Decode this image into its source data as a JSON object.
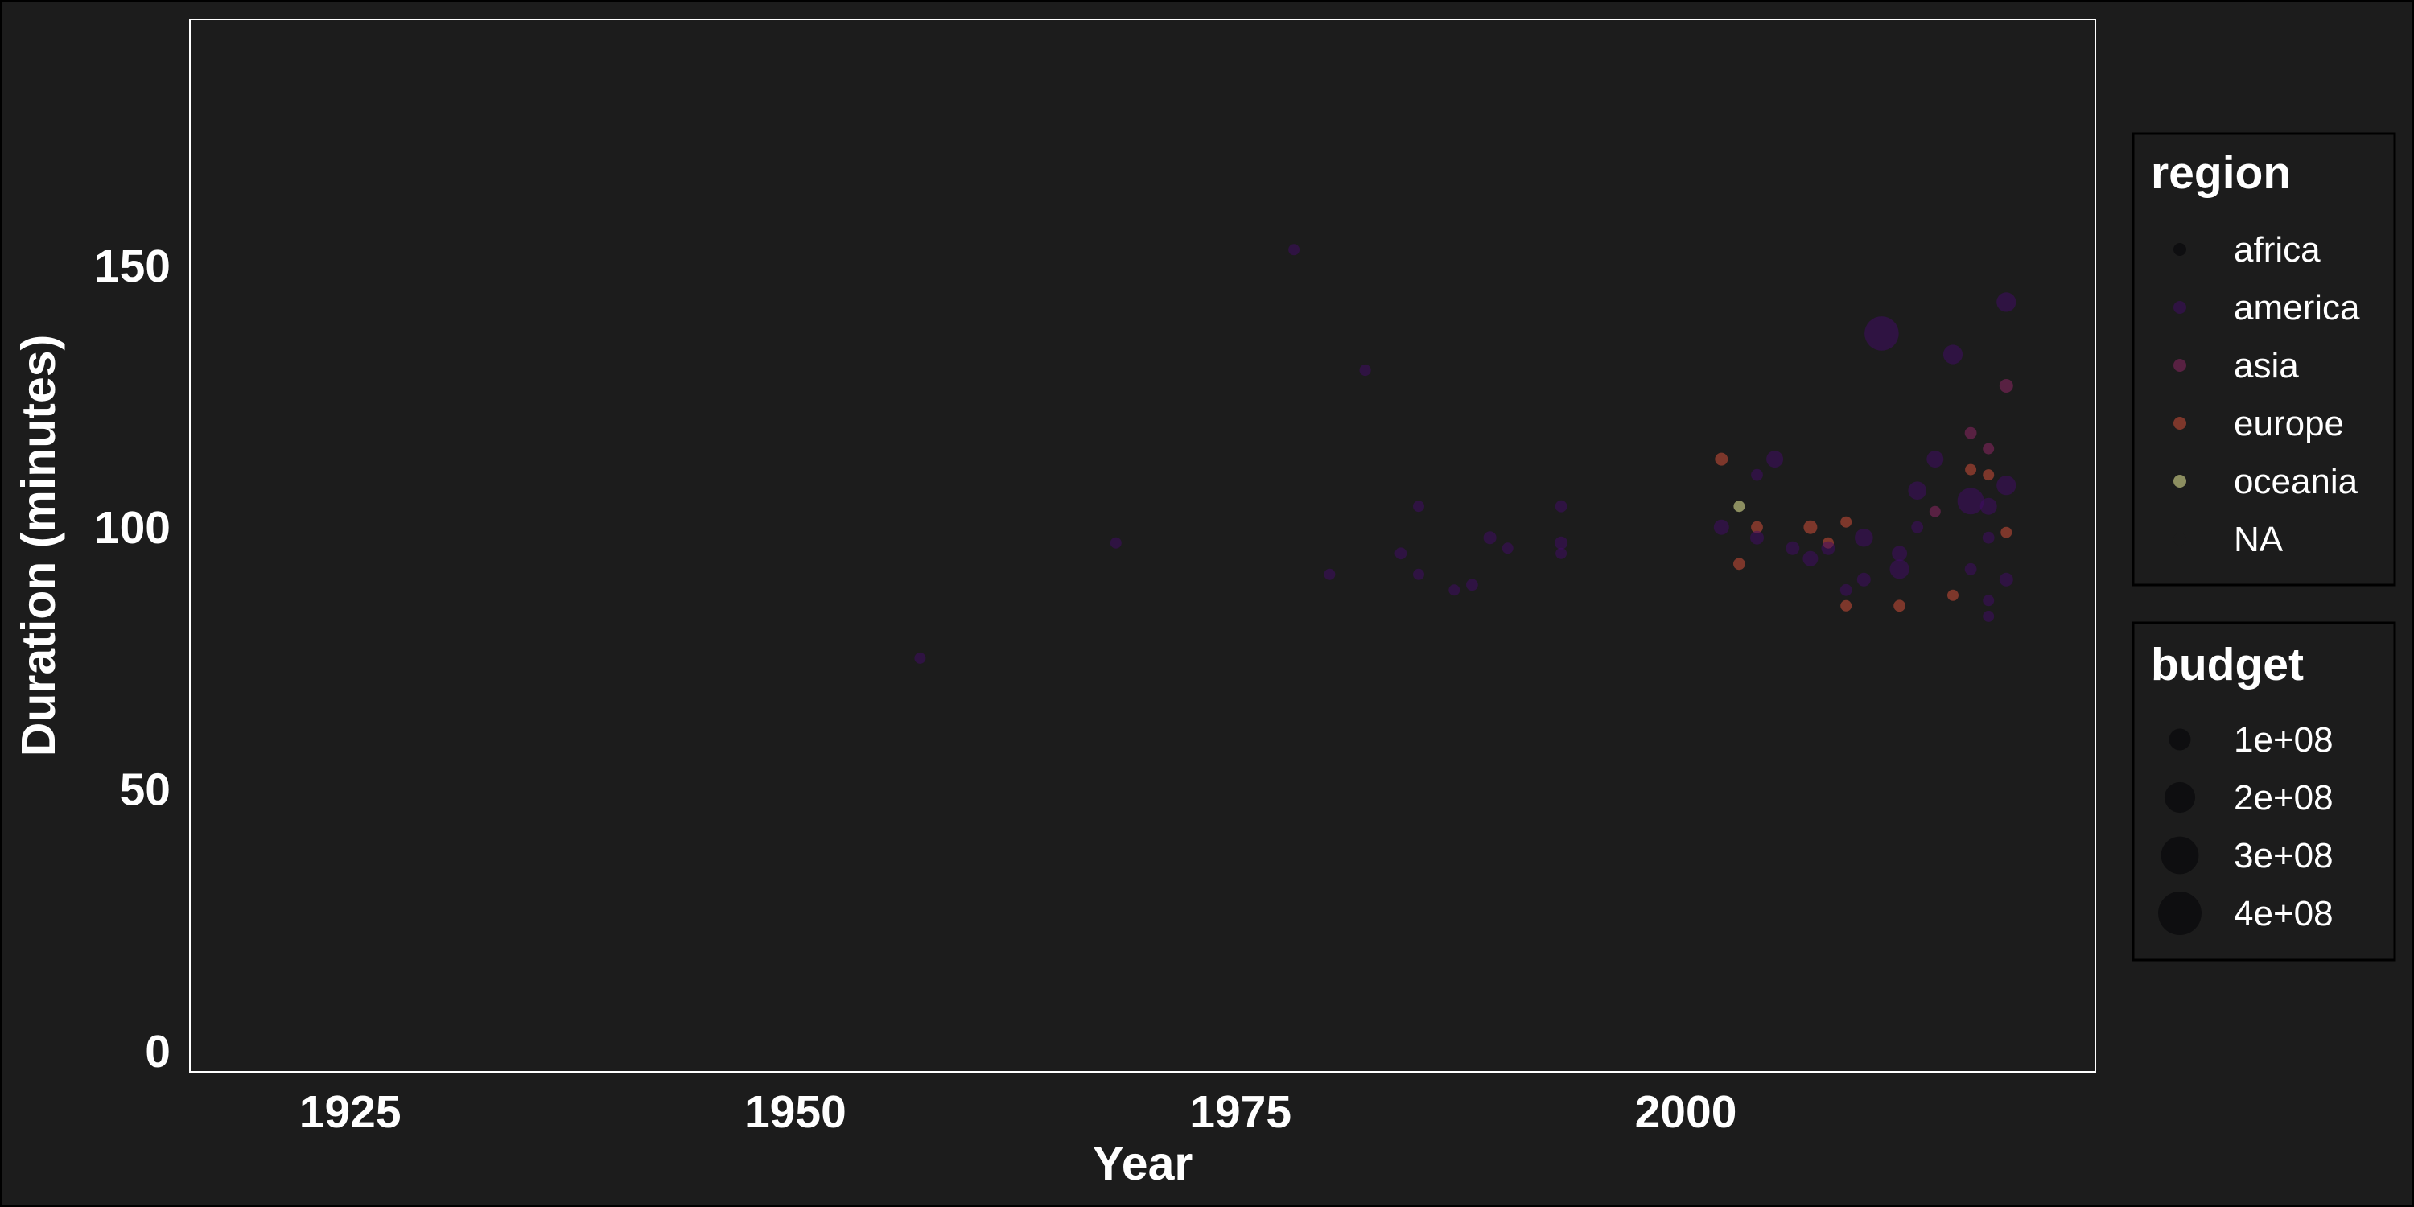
{
  "chart_data": {
    "type": "scatter",
    "title": "",
    "xlabel": "Year",
    "ylabel": "Duration (minutes)",
    "xlim": [
      1916,
      2023
    ],
    "ylim": [
      -4,
      197
    ],
    "x_ticks": [
      1925,
      1950,
      1975,
      2000
    ],
    "y_ticks": [
      0,
      50,
      100,
      150
    ],
    "x_tick_labels": [
      "1925",
      "1950",
      "1975",
      "2000"
    ],
    "y_tick_labels": [
      "0",
      "50",
      "100",
      "150"
    ],
    "grid": false,
    "background": "#1c1c1c",
    "legend_position": "right",
    "color_legend": {
      "title": "region",
      "entries": [
        {
          "label": "africa",
          "color": "#000004"
        },
        {
          "label": "america",
          "color": "#420a68"
        },
        {
          "label": "asia",
          "color": "#932667"
        },
        {
          "label": "europe",
          "color": "#dd513a"
        },
        {
          "label": "oceania",
          "color": "#fcffa4"
        },
        {
          "label": "NA",
          "color": "#1c1c1c"
        }
      ]
    },
    "size_legend": {
      "title": "budget",
      "entries": [
        {
          "label": "1e+08",
          "value": 100000000
        },
        {
          "label": "2e+08",
          "value": 200000000
        },
        {
          "label": "3e+08",
          "value": 300000000
        },
        {
          "label": "4e+08",
          "value": 400000000
        }
      ]
    },
    "points": [
      {
        "x": 1957,
        "y": 75,
        "region": "america",
        "budget": 5000000
      },
      {
        "x": 1968,
        "y": 97,
        "region": "america",
        "budget": 10000000
      },
      {
        "x": 1978,
        "y": 153,
        "region": "america",
        "budget": 15000000
      },
      {
        "x": 1980,
        "y": 91,
        "region": "america",
        "budget": 8000000
      },
      {
        "x": 1982,
        "y": 130,
        "region": "america",
        "budget": 28000000
      },
      {
        "x": 1984,
        "y": 95,
        "region": "america",
        "budget": 30000000
      },
      {
        "x": 1985,
        "y": 104,
        "region": "america",
        "budget": 15000000
      },
      {
        "x": 1985,
        "y": 91,
        "region": "america",
        "budget": 15000000
      },
      {
        "x": 1987,
        "y": 88,
        "region": "america",
        "budget": 25000000
      },
      {
        "x": 1988,
        "y": 89,
        "region": "america",
        "budget": 30000000
      },
      {
        "x": 1989,
        "y": 98,
        "region": "america",
        "budget": 35000000
      },
      {
        "x": 1990,
        "y": 96,
        "region": "america",
        "budget": 25000000
      },
      {
        "x": 1993,
        "y": 104,
        "region": "america",
        "budget": 30000000
      },
      {
        "x": 1993,
        "y": 97,
        "region": "america",
        "budget": 35000000
      },
      {
        "x": 1993,
        "y": 95,
        "region": "america",
        "budget": 20000000
      },
      {
        "x": 2002,
        "y": 113,
        "region": "europe",
        "budget": 35000000
      },
      {
        "x": 2002,
        "y": 100,
        "region": "america",
        "budget": 50000000
      },
      {
        "x": 2003,
        "y": 93,
        "region": "europe",
        "budget": 30000000
      },
      {
        "x": 2003,
        "y": 104,
        "region": "oceania",
        "budget": 15000000
      },
      {
        "x": 2004,
        "y": 100,
        "region": "europe",
        "budget": 30000000
      },
      {
        "x": 2004,
        "y": 98,
        "region": "america",
        "budget": 40000000
      },
      {
        "x": 2004,
        "y": 110,
        "region": "america",
        "budget": 30000000
      },
      {
        "x": 2005,
        "y": 113,
        "region": "america",
        "budget": 60000000
      },
      {
        "x": 2006,
        "y": 96,
        "region": "america",
        "budget": 40000000
      },
      {
        "x": 2007,
        "y": 100,
        "region": "europe",
        "budget": 40000000
      },
      {
        "x": 2007,
        "y": 94,
        "region": "america",
        "budget": 50000000
      },
      {
        "x": 2008,
        "y": 97,
        "region": "europe",
        "budget": 15000000
      },
      {
        "x": 2008,
        "y": 96,
        "region": "america",
        "budget": 40000000
      },
      {
        "x": 2009,
        "y": 101,
        "region": "europe",
        "budget": 20000000
      },
      {
        "x": 2009,
        "y": 85,
        "region": "europe",
        "budget": 20000000
      },
      {
        "x": 2009,
        "y": 88,
        "region": "america",
        "budget": 30000000
      },
      {
        "x": 2010,
        "y": 98,
        "region": "america",
        "budget": 70000000
      },
      {
        "x": 2010,
        "y": 90,
        "region": "america",
        "budget": 40000000
      },
      {
        "x": 2011,
        "y": 137,
        "region": "america",
        "budget": 250000000
      },
      {
        "x": 2012,
        "y": 95,
        "region": "america",
        "budget": 50000000
      },
      {
        "x": 2012,
        "y": 92,
        "region": "america",
        "budget": 80000000
      },
      {
        "x": 2012,
        "y": 85,
        "region": "europe",
        "budget": 30000000
      },
      {
        "x": 2013,
        "y": 100,
        "region": "america",
        "budget": 30000000
      },
      {
        "x": 2013,
        "y": 107,
        "region": "america",
        "budget": 70000000
      },
      {
        "x": 2014,
        "y": 113,
        "region": "america",
        "budget": 60000000
      },
      {
        "x": 2014,
        "y": 103,
        "region": "asia",
        "budget": 20000000
      },
      {
        "x": 2015,
        "y": 133,
        "region": "america",
        "budget": 80000000
      },
      {
        "x": 2015,
        "y": 87,
        "region": "europe",
        "budget": 20000000
      },
      {
        "x": 2016,
        "y": 118,
        "region": "asia",
        "budget": 30000000
      },
      {
        "x": 2016,
        "y": 111,
        "region": "europe",
        "budget": 25000000
      },
      {
        "x": 2016,
        "y": 105,
        "region": "america",
        "budget": 150000000
      },
      {
        "x": 2016,
        "y": 92,
        "region": "america",
        "budget": 30000000
      },
      {
        "x": 2017,
        "y": 115,
        "region": "asia",
        "budget": 15000000
      },
      {
        "x": 2017,
        "y": 110,
        "region": "europe",
        "budget": 25000000
      },
      {
        "x": 2017,
        "y": 104,
        "region": "america",
        "budget": 60000000
      },
      {
        "x": 2017,
        "y": 98,
        "region": "america",
        "budget": 30000000
      },
      {
        "x": 2017,
        "y": 86,
        "region": "america",
        "budget": 25000000
      },
      {
        "x": 2017,
        "y": 83,
        "region": "america",
        "budget": 25000000
      },
      {
        "x": 2018,
        "y": 143,
        "region": "america",
        "budget": 80000000
      },
      {
        "x": 2018,
        "y": 127,
        "region": "asia",
        "budget": 40000000
      },
      {
        "x": 2018,
        "y": 108,
        "region": "america",
        "budget": 80000000
      },
      {
        "x": 2018,
        "y": 99,
        "region": "europe",
        "budget": 20000000
      },
      {
        "x": 2018,
        "y": 90,
        "region": "america",
        "budget": 40000000
      }
    ]
  }
}
